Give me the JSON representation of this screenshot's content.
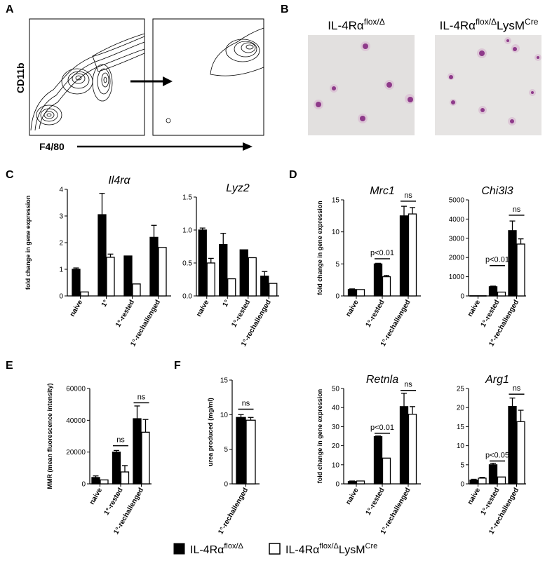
{
  "panel_labels": {
    "A": "A",
    "B": "B",
    "C": "C",
    "D": "D",
    "E": "E",
    "F": "F"
  },
  "panel_a": {
    "y_label": "CD11b",
    "x_label": "F4/80"
  },
  "panel_b": {
    "left_title": {
      "base": "IL-4Rα",
      "sup": "flox/Δ"
    },
    "right_title": {
      "base": "IL-4Rα",
      "sup": "flox/Δ",
      "base2": "LysM",
      "sup2": "Cre"
    }
  },
  "legend": {
    "black": {
      "base": "IL-4Rα",
      "sup": "flox/Δ",
      "color": "#000000"
    },
    "white": {
      "base": "IL-4Rα",
      "sup": "flox/Δ",
      "base2": "LysM",
      "sup2": "Cre",
      "color": "#ffffff"
    }
  },
  "chart_data": [
    {
      "id": "il4ra",
      "type": "bar",
      "title": "Il4rα",
      "ylabel": "fold change in gene expression",
      "ylim": [
        0,
        4
      ],
      "yticks": [
        0,
        1,
        2,
        3,
        4
      ],
      "categories": [
        "naive",
        "1°",
        "1°-rested",
        "1°-rechallenged"
      ],
      "series": [
        {
          "values": [
            1.0,
            3.05,
            1.5,
            2.2
          ],
          "errors": [
            0.05,
            0.8,
            0,
            0.45
          ]
        },
        {
          "values": [
            0.15,
            1.45,
            0.45,
            1.82
          ],
          "errors": [
            0,
            0.12,
            0,
            0
          ]
        }
      ],
      "annotations": []
    },
    {
      "id": "lyz2",
      "type": "bar",
      "title": "Lyz2",
      "ylabel": "",
      "ylim": [
        0,
        1.5
      ],
      "yticks": [
        "0.0",
        "0.5",
        "1.0",
        "1.5"
      ],
      "categories": [
        "naive",
        "1°",
        "1°-rested",
        "1°-rechallenged"
      ],
      "series": [
        {
          "values": [
            1.0,
            0.78,
            0.7,
            0.3
          ],
          "errors": [
            0.03,
            0.17,
            0,
            0.07
          ]
        },
        {
          "values": [
            0.5,
            0.26,
            0.58,
            0.19
          ],
          "errors": [
            0.07,
            0,
            0,
            0
          ]
        }
      ],
      "annotations": []
    },
    {
      "id": "mrc1",
      "type": "bar",
      "title": "Mrc1",
      "ylabel": "fold change in gene expression",
      "ylim": [
        0,
        15
      ],
      "yticks": [
        0,
        5,
        10,
        15
      ],
      "categories": [
        "naive",
        "1°-rested",
        "1°-rechallenged"
      ],
      "series": [
        {
          "values": [
            1.0,
            5.0,
            12.5
          ],
          "errors": [
            0.1,
            0.1,
            1.5
          ]
        },
        {
          "values": [
            1.0,
            3.0,
            12.8
          ],
          "errors": [
            0,
            0.2,
            1.0
          ]
        }
      ],
      "annotations": [
        {
          "text": "p<0.01",
          "cat": 1,
          "y": 5.8
        },
        {
          "text": "ns",
          "cat": 2,
          "y": 14.8
        }
      ]
    },
    {
      "id": "chi3l3",
      "type": "bar",
      "title": "Chi3l3",
      "ylabel": "",
      "ylim": [
        0,
        5000
      ],
      "yticks": [
        0,
        1000,
        2000,
        3000,
        4000,
        5000
      ],
      "categories": [
        "naive",
        "1°-rested",
        "1°-rechallenged"
      ],
      "series": [
        {
          "values": [
            10,
            480,
            3400
          ],
          "errors": [
            0,
            30,
            500
          ]
        },
        {
          "values": [
            10,
            200,
            2700
          ],
          "errors": [
            0,
            0,
            270
          ]
        }
      ],
      "annotations": [
        {
          "text": "p<0.01",
          "cat": 1,
          "y": 1580
        },
        {
          "text": "ns",
          "cat": 2,
          "y": 4200
        }
      ]
    },
    {
      "id": "mmr",
      "type": "bar",
      "title": "",
      "ylabel": "MMR (mean fluorescence intensity)",
      "ylim": [
        0,
        60000
      ],
      "yticks": [
        0,
        20000,
        40000,
        60000
      ],
      "categories": [
        "naive",
        "1°-rested",
        "1°-rechallenged"
      ],
      "series": [
        {
          "values": [
            4000,
            20000,
            41000
          ],
          "errors": [
            1000,
            1000,
            8000
          ]
        },
        {
          "values": [
            2500,
            7500,
            32500
          ],
          "errors": [
            0,
            4000,
            8000
          ]
        }
      ],
      "annotations": [
        {
          "text": "ns",
          "cat": 1,
          "y": 24000
        },
        {
          "text": "ns",
          "cat": 2,
          "y": 51000
        }
      ]
    },
    {
      "id": "urea",
      "type": "bar",
      "title": "",
      "ylabel": "urea produced (mg/ml)",
      "ylim": [
        0,
        15
      ],
      "yticks": [
        0,
        5,
        10,
        15
      ],
      "categories": [
        "1°-rechallenged"
      ],
      "series": [
        {
          "values": [
            9.6
          ],
          "errors": [
            0.4
          ]
        },
        {
          "values": [
            9.2
          ],
          "errors": [
            0.4
          ]
        }
      ],
      "annotations": [
        {
          "text": "ns",
          "cat": 0,
          "y": 10.8
        }
      ]
    },
    {
      "id": "retnla",
      "type": "bar",
      "title": "Retnla",
      "ylabel": "fold change in gene expression",
      "ylim": [
        0,
        50
      ],
      "yticks": [
        0,
        10,
        20,
        30,
        40,
        50
      ],
      "categories": [
        "naive",
        "1°-rested",
        "1°-rechallenged"
      ],
      "series": [
        {
          "values": [
            1.2,
            24.8,
            40.5
          ],
          "errors": [
            0.3,
            0.3,
            7
          ]
        },
        {
          "values": [
            1.5,
            13.5,
            36.5
          ],
          "errors": [
            0,
            0,
            4
          ]
        }
      ],
      "annotations": [
        {
          "text": "p<0.01",
          "cat": 1,
          "y": 26.5
        },
        {
          "text": "ns",
          "cat": 2,
          "y": 49
        }
      ]
    },
    {
      "id": "arg1",
      "type": "bar",
      "title": "Arg1",
      "ylabel": "",
      "ylim": [
        0,
        25
      ],
      "yticks": [
        0,
        5,
        10,
        15,
        20,
        25
      ],
      "categories": [
        "naive",
        "1°-rested",
        "1°-rechallenged"
      ],
      "series": [
        {
          "values": [
            1.0,
            5.0,
            20.3
          ],
          "errors": [
            0.2,
            0.4,
            2.2
          ]
        },
        {
          "values": [
            1.5,
            1.8,
            16.3
          ],
          "errors": [
            0.2,
            0,
            3
          ]
        }
      ],
      "annotations": [
        {
          "text": "p<0.05",
          "cat": 1,
          "y": 6
        },
        {
          "text": "ns",
          "cat": 2,
          "y": 23.5
        }
      ]
    }
  ]
}
